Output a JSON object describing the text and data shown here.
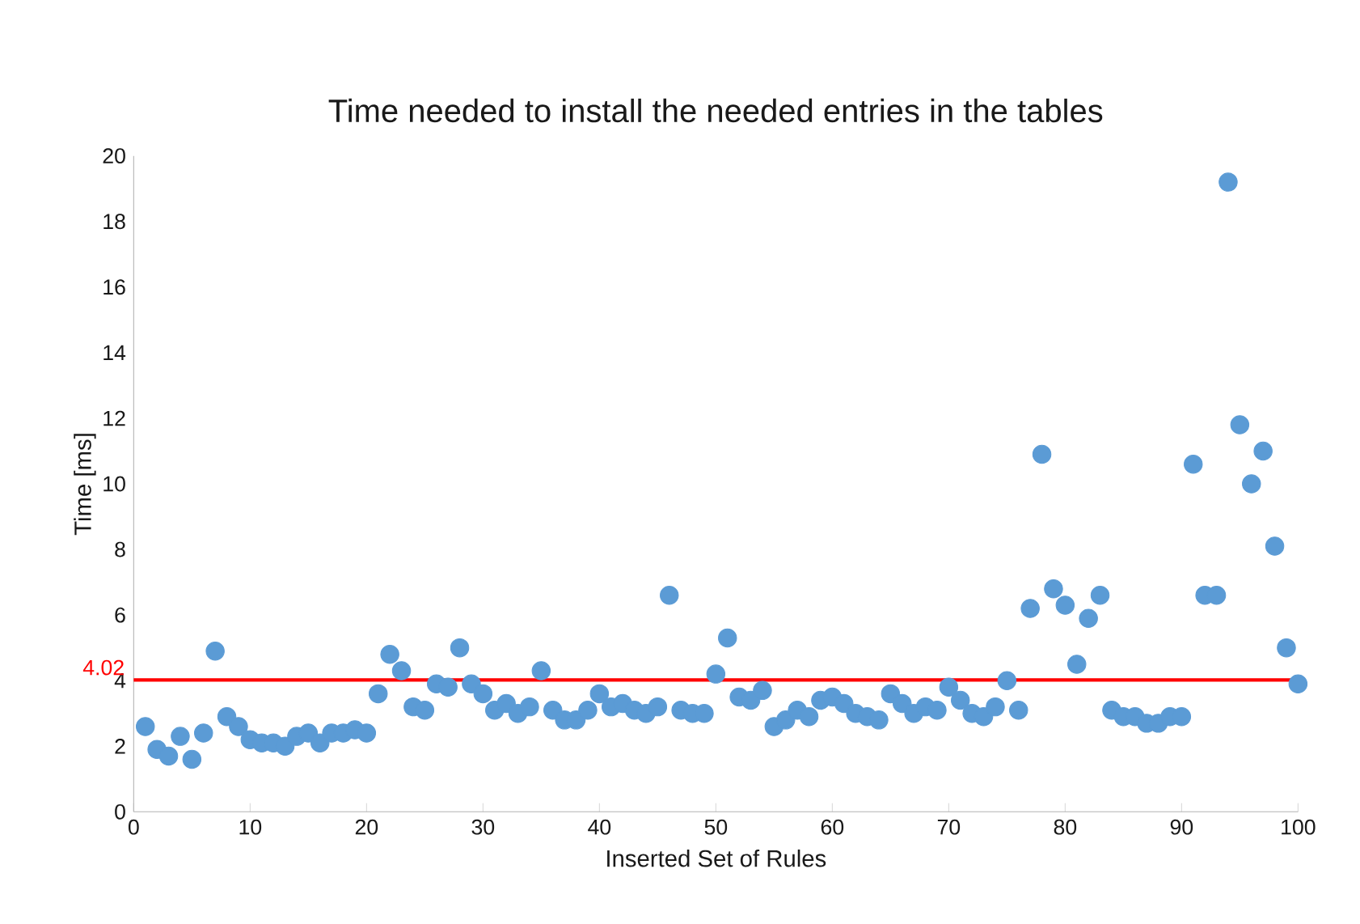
{
  "chart_data": {
    "type": "scatter",
    "title": "Time needed to install the needed entries in the tables",
    "xlabel": "Inserted Set of Rules",
    "ylabel": "Time [ms]",
    "x": [
      1,
      2,
      3,
      4,
      5,
      6,
      7,
      8,
      9,
      10,
      11,
      12,
      13,
      14,
      15,
      16,
      17,
      18,
      19,
      20,
      21,
      22,
      23,
      24,
      25,
      26,
      27,
      28,
      29,
      30,
      31,
      32,
      33,
      34,
      35,
      36,
      37,
      38,
      39,
      40,
      41,
      42,
      43,
      44,
      45,
      46,
      47,
      48,
      49,
      50,
      51,
      52,
      53,
      54,
      55,
      56,
      57,
      58,
      59,
      60,
      61,
      62,
      63,
      64,
      65,
      66,
      67,
      68,
      69,
      70,
      71,
      72,
      73,
      74,
      75,
      76,
      77,
      78,
      79,
      80,
      81,
      82,
      83,
      84,
      85,
      86,
      87,
      88,
      89,
      90,
      91,
      92,
      93,
      94,
      95,
      96,
      97,
      98,
      99,
      100
    ],
    "series": [
      {
        "color": "#5b9bd5",
        "values": [
          2.6,
          1.9,
          1.7,
          2.3,
          1.6,
          2.4,
          4.9,
          2.9,
          2.6,
          2.2,
          2.1,
          2.1,
          2.0,
          2.3,
          2.4,
          2.1,
          2.4,
          2.4,
          2.5,
          2.4,
          3.6,
          4.8,
          4.3,
          3.2,
          3.1,
          3.9,
          3.8,
          5.0,
          3.9,
          3.6,
          3.1,
          3.3,
          3.0,
          3.2,
          4.3,
          3.1,
          2.8,
          2.8,
          3.1,
          3.6,
          3.2,
          3.3,
          3.1,
          3.0,
          3.2,
          6.6,
          3.1,
          3.0,
          3.0,
          4.2,
          5.3,
          3.5,
          3.4,
          3.7,
          2.6,
          2.8,
          3.1,
          2.9,
          3.4,
          3.5,
          3.3,
          3.0,
          2.9,
          2.8,
          3.6,
          3.3,
          3.0,
          3.2,
          3.1,
          3.8,
          3.4,
          3.0,
          2.9,
          3.2,
          4.0,
          3.1,
          6.2,
          10.9,
          6.8,
          6.3,
          4.5,
          5.9,
          6.6,
          3.1,
          2.9,
          2.9,
          2.7,
          2.7,
          2.9,
          2.9,
          10.6,
          6.6,
          6.6,
          19.2,
          11.8,
          10.0,
          11.0,
          8.1,
          5.0,
          3.9
        ]
      }
    ],
    "xlim": [
      0,
      100
    ],
    "ylim": [
      0,
      20
    ],
    "xticks": [
      0,
      10,
      20,
      30,
      40,
      50,
      60,
      70,
      80,
      90,
      100
    ],
    "yticks": [
      0,
      2,
      4,
      6,
      8,
      10,
      12,
      14,
      16,
      18,
      20
    ],
    "ref_lines": [
      {
        "axis": "y",
        "value": 4.02,
        "label": "4.02",
        "color": "#ff0000"
      }
    ],
    "marker": "circle",
    "grid": false
  }
}
